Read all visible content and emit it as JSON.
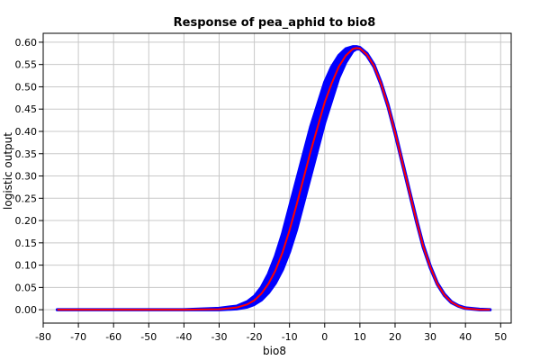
{
  "chart_data": {
    "type": "line",
    "title": "Response of pea_aphid to bio8",
    "xlabel": "bio8",
    "ylabel": "logistic output",
    "xlim": [
      -80,
      53
    ],
    "ylim": [
      -0.03,
      0.62
    ],
    "xticks": [
      -80,
      -70,
      -60,
      -50,
      -40,
      -30,
      -20,
      -10,
      0,
      10,
      20,
      30,
      40,
      50
    ],
    "yticks": [
      0.0,
      0.05,
      0.1,
      0.15,
      0.2,
      0.25,
      0.3,
      0.35,
      0.4,
      0.45,
      0.5,
      0.55,
      0.6
    ],
    "xtick_labels": [
      "-80",
      "-70",
      "-60",
      "-50",
      "-40",
      "-30",
      "-20",
      "-10",
      "0",
      "10",
      "20",
      "30",
      "40",
      "50"
    ],
    "ytick_labels": [
      "0.00",
      "0.05",
      "0.10",
      "0.15",
      "0.20",
      "0.25",
      "0.30",
      "0.35",
      "0.40",
      "0.45",
      "0.50",
      "0.55",
      "0.60"
    ],
    "grid": true,
    "series": [
      {
        "role": "variation-band",
        "color": "#0000ff",
        "x": [
          -76,
          -60,
          -40,
          -30,
          -25,
          -22,
          -20,
          -18,
          -16,
          -14,
          -12,
          -10,
          -8,
          -6,
          -4,
          -2,
          0,
          2,
          4,
          6,
          8,
          9,
          10,
          12,
          14,
          16,
          18,
          20,
          22,
          24,
          26,
          28,
          30,
          32,
          34,
          36,
          38,
          40,
          44,
          47
        ],
        "upper": [
          0.0,
          0.0,
          0.0,
          0.003,
          0.008,
          0.018,
          0.03,
          0.05,
          0.08,
          0.12,
          0.17,
          0.23,
          0.29,
          0.35,
          0.41,
          0.46,
          0.51,
          0.545,
          0.57,
          0.585,
          0.59,
          0.59,
          0.588,
          0.575,
          0.55,
          0.51,
          0.46,
          0.4,
          0.335,
          0.27,
          0.205,
          0.145,
          0.098,
          0.06,
          0.035,
          0.018,
          0.009,
          0.004,
          0.001,
          0.0
        ],
        "lower": [
          0.0,
          0.0,
          0.0,
          0.0,
          0.002,
          0.006,
          0.012,
          0.022,
          0.038,
          0.06,
          0.09,
          0.13,
          0.18,
          0.24,
          0.3,
          0.36,
          0.42,
          0.47,
          0.52,
          0.555,
          0.58,
          0.585,
          0.585,
          0.57,
          0.545,
          0.505,
          0.455,
          0.395,
          0.33,
          0.265,
          0.2,
          0.14,
          0.094,
          0.057,
          0.032,
          0.016,
          0.008,
          0.003,
          0.0,
          0.0
        ]
      },
      {
        "role": "mean-response",
        "color": "#ff0000",
        "x": [
          -76,
          -60,
          -40,
          -30,
          -25,
          -22,
          -20,
          -18,
          -16,
          -14,
          -12,
          -10,
          -8,
          -6,
          -4,
          -2,
          0,
          2,
          4,
          6,
          8,
          9,
          10,
          12,
          14,
          16,
          18,
          20,
          22,
          24,
          26,
          28,
          30,
          32,
          34,
          36,
          38,
          40,
          44,
          47
        ],
        "values": [
          0.0,
          0.0,
          0.0,
          0.001,
          0.005,
          0.012,
          0.021,
          0.036,
          0.058,
          0.088,
          0.128,
          0.178,
          0.235,
          0.295,
          0.355,
          0.41,
          0.465,
          0.508,
          0.545,
          0.57,
          0.585,
          0.587,
          0.586,
          0.572,
          0.547,
          0.507,
          0.457,
          0.397,
          0.332,
          0.267,
          0.202,
          0.142,
          0.096,
          0.058,
          0.033,
          0.017,
          0.008,
          0.003,
          0.0,
          0.0
        ]
      }
    ]
  }
}
